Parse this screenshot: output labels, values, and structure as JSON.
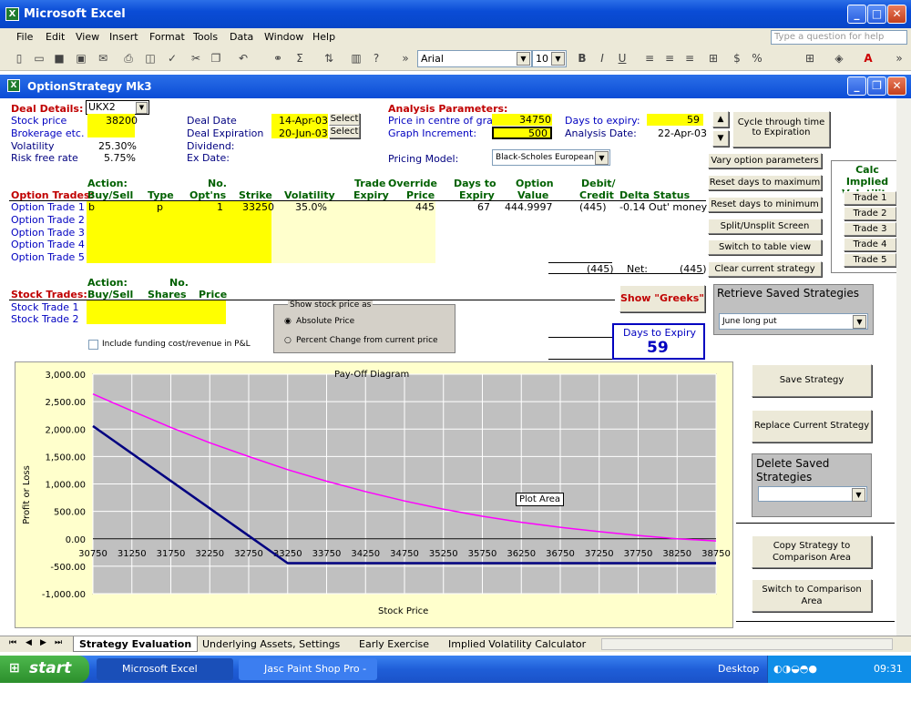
{
  "window": {
    "title": "Microsoft Excel"
  },
  "menu": [
    "File",
    "Edit",
    "View",
    "Insert",
    "Format",
    "Tools",
    "Data",
    "Window",
    "Help"
  ],
  "help_placeholder": "Type a question for help",
  "font": {
    "name": "Arial",
    "size": "10"
  },
  "workbook_title": "OptionStrategy Mk3",
  "deal": {
    "label": "Deal Details:",
    "code": "UKX2",
    "stock_price_label": "Stock price",
    "stock_price": "38200",
    "brokerage_label": "Brokerage etc.",
    "volatility_label": "Volatility",
    "volatility": "25.30%",
    "rfr_label": "Risk free rate",
    "rfr": "5.75%",
    "deal_date_label": "Deal Date",
    "deal_date": "14-Apr-03",
    "deal_exp_label": "Deal Expiration",
    "deal_exp": "20-Jun-03",
    "dividend_label": "Dividend:",
    "exdate_label": "Ex Date:",
    "select": "Select"
  },
  "analysis": {
    "label": "Analysis Parameters:",
    "centre_label": "Price in centre of graph:",
    "centre": "34750",
    "incr_label": "Graph Increment:",
    "incr": "500",
    "dte_label": "Days to expiry:",
    "dte": "59",
    "adate_label": "Analysis Date:",
    "adate": "22-Apr-03",
    "model_label": "Pricing Model:",
    "model": "Black-Scholes European"
  },
  "option_trades": {
    "label": "Option Trades:",
    "h_action": "Action:",
    "h_buysell": "Buy/Sell",
    "h_type": "Type",
    "h_no": "No.",
    "h_optns": "Opt'ns",
    "h_strike": "Strike",
    "h_vol": "Volatility",
    "h_trade": "Trade",
    "h_expiry": "Expiry",
    "h_override": "Override",
    "h_price": "Price",
    "h_days": "Days to",
    "h_dexp": "Expiry",
    "h_option": "Option",
    "h_value": "Value",
    "h_debit": "Debit/",
    "h_credit": "Credit",
    "h_delta": "Delta Status",
    "rows": [
      "Option Trade 1",
      "Option Trade 2",
      "Option Trade 3",
      "Option Trade 4",
      "Option Trade 5"
    ],
    "t1": {
      "bs": "b",
      "type": "p",
      "no": "1",
      "strike": "33250",
      "vol": "35.0%",
      "price": "445",
      "days": "67",
      "value": "444.9997",
      "debit": "(445)",
      "delta": "-0.14 Out' money"
    },
    "total": "(445)",
    "net_label": "Net:",
    "net": "(445)"
  },
  "stock_trades": {
    "label": "Stock Trades:",
    "h_action": "Action:",
    "h_buysell": "Buy/Sell",
    "h_no": "No.",
    "h_shares": "Shares",
    "h_price": "Price",
    "rows": [
      "Stock Trade 1",
      "Stock Trade 2"
    ],
    "funding": "Include funding cost/revenue in P&L"
  },
  "show_price": {
    "title": "Show stock price as",
    "opt1": "Absolute Price",
    "opt2": "Percent Change from current price"
  },
  "buttons": {
    "cycle": "Cycle through time to Expiration",
    "vary": "Vary option parameters",
    "reset_max": "Reset days to maximum",
    "reset_min": "Reset days to minimum",
    "split": "Split/Unsplit Screen",
    "switch_table": "Switch to table view",
    "clear": "Clear current strategy",
    "greeks": "Show \"Greeks\"",
    "save": "Save Strategy",
    "replace": "Replace Current Strategy",
    "copy": "Copy Strategy to Comparison Area",
    "switch_comp": "Switch to Comparison Area"
  },
  "calc_iv": {
    "title": "Calc Implied Volatility",
    "trades": [
      "Trade 1",
      "Trade 2",
      "Trade 3",
      "Trade 4",
      "Trade 5"
    ]
  },
  "retrieve": {
    "title": "Retrieve Saved Strategies",
    "value": "June long put"
  },
  "delete": {
    "title": "Delete Saved Strategies"
  },
  "dte_box": {
    "label": "Days to Expiry",
    "value": "59"
  },
  "chart_data": {
    "type": "line",
    "title": "Pay-Off Diagram",
    "xlabel": "Stock Price",
    "ylabel": "Profit or Loss",
    "x": [
      30750,
      31250,
      31750,
      32250,
      32750,
      33250,
      33750,
      34250,
      34750,
      35250,
      35750,
      36250,
      36750,
      37250,
      37750,
      38250,
      38750
    ],
    "xticks": [
      "30750",
      "31250",
      "31750",
      "32250",
      "32750",
      "33250",
      "33750",
      "34250",
      "34750",
      "35250",
      "35750",
      "36250",
      "36750",
      "37250",
      "37750",
      "38250",
      "38750"
    ],
    "yticks": [
      "3,000.00",
      "2,500.00",
      "2,000.00",
      "1,500.00",
      "1,000.00",
      "500.00",
      "0.00",
      "-500.00",
      "-1,000.00"
    ],
    "ylim": [
      -1000,
      3000
    ],
    "series": [
      {
        "values": [
          2055,
          1555,
          1055,
          555,
          55,
          -445,
          -445,
          -445,
          -445,
          -445,
          -445,
          -445,
          -445,
          -445,
          -445,
          -445,
          -445
        ],
        "color": "#000080"
      },
      {
        "values": [
          2640,
          2330,
          2030,
          1750,
          1500,
          1260,
          1050,
          860,
          690,
          540,
          410,
          300,
          210,
          130,
          60,
          0,
          -40
        ],
        "color": "#ff00ff"
      }
    ],
    "annotation": "Plot Area"
  },
  "tabs": [
    "Strategy Evaluation",
    "Underlying Assets, Settings",
    "Early Exercise",
    "Implied Volatility Calculator"
  ],
  "taskbar": {
    "start": "start",
    "t1": "Microsoft Excel",
    "t2": "Jasc Paint Shop Pro - ...",
    "desktop": "Desktop",
    "time": "09:31"
  }
}
